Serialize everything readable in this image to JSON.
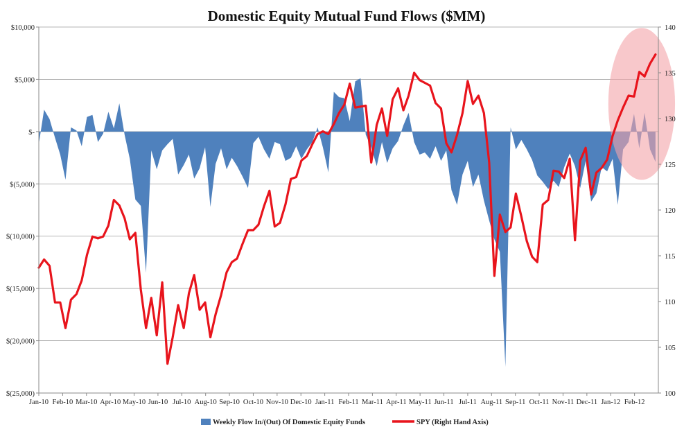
{
  "chart_data": {
    "type": "combo",
    "title": "Domestic Equity Mutual Fund Flows ($MM)",
    "x_tick_labels": [
      "Jan-10",
      "Feb-10",
      "Mar-10",
      "Apr-10",
      "May-10",
      "Jun-10",
      "Jul-10",
      "Aug-10",
      "Sep-10",
      "Oct-10",
      "Nov-10",
      "Dec-10",
      "Jan-11",
      "Feb-11",
      "Mar-11",
      "Apr-11",
      "May-11",
      "Jun-11",
      "Jul-11",
      "Aug-11",
      "Sep-11",
      "Oct-11",
      "Nov-11",
      "Dec-11",
      "Jan-12",
      "Feb-12"
    ],
    "left_axis": {
      "ylim": [
        -25000,
        10000
      ],
      "tick_values": [
        10000,
        5000,
        0,
        -5000,
        -10000,
        -15000,
        -20000,
        -25000
      ],
      "tick_labels": [
        "$10,000",
        "$5,000",
        "$-",
        "$(5,000)",
        "$(10,000)",
        "$(15,000)",
        "$(20,000)",
        "$(25,000)"
      ]
    },
    "right_axis": {
      "ylim": [
        100,
        140
      ],
      "tick_values": [
        140,
        135,
        130,
        125,
        120,
        115,
        110,
        105,
        100
      ],
      "tick_labels": [
        "140",
        "135",
        "130",
        "125",
        "120",
        "115",
        "110",
        "105",
        "100"
      ]
    },
    "legend": {
      "placement": "bottom-center",
      "flow_label": "Weekly Flow In/(Out) Of Domestic Equity Funds",
      "spy_label": "SPY (Right Hand Axis)"
    },
    "colors": {
      "flow": "#4f81bd",
      "spy": "#e8141c",
      "highlight": "#f4a3a8",
      "grid": "#9e9e9e"
    },
    "series": [
      {
        "name": "Weekly Flow In/(Out) Of Domestic Equity Funds",
        "axis": "left",
        "style": "area",
        "x": [
          0,
          0.22,
          0.45,
          0.68,
          0.9,
          1.12,
          1.35,
          1.58,
          1.8,
          2.02,
          2.25,
          2.48,
          2.7,
          2.92,
          3.15,
          3.38,
          3.6,
          3.82,
          4.05,
          4.28,
          4.5,
          4.72,
          4.95,
          5.18,
          5.4,
          5.62,
          5.85,
          6.08,
          6.3,
          6.52,
          6.75,
          6.98,
          7.2,
          7.42,
          7.65,
          7.88,
          8.1,
          8.32,
          8.55,
          8.78,
          9,
          9.22,
          9.45,
          9.68,
          9.9,
          10.12,
          10.35,
          10.58,
          10.8,
          11.02,
          11.25,
          11.48,
          11.7,
          11.92,
          12.15,
          12.38,
          12.6,
          12.82,
          13.05,
          13.28,
          13.5,
          13.72,
          13.95,
          14.18,
          14.4,
          14.62,
          14.85,
          15.08,
          15.3,
          15.52,
          15.75,
          15.98,
          16.2,
          16.42,
          16.65,
          16.88,
          17.1,
          17.32,
          17.55,
          17.78,
          18,
          18.22,
          18.45,
          18.68,
          18.9,
          19.12,
          19.35,
          19.58,
          19.8,
          20.02,
          20.25,
          20.48,
          20.7,
          20.92,
          21.15,
          21.38,
          21.6,
          21.82,
          22.05,
          22.28,
          22.5,
          22.72,
          22.95,
          23.18,
          23.4,
          23.62,
          23.85,
          24.08,
          24.3,
          24.52,
          24.75,
          24.98,
          25.2,
          25.42,
          25.65,
          25.88
        ],
        "values": [
          -1200,
          2100,
          1200,
          -600,
          -2200,
          -4600,
          400,
          100,
          -1400,
          1400,
          1600,
          -1000,
          -200,
          1900,
          300,
          2700,
          -300,
          -2600,
          -6500,
          -7100,
          -13500,
          -1800,
          -3600,
          -1800,
          -1200,
          -700,
          -4100,
          -3200,
          -2200,
          -4500,
          -3500,
          -1500,
          -7200,
          -3100,
          -1600,
          -3600,
          -2500,
          -3300,
          -4300,
          -5400,
          -1100,
          -500,
          -1700,
          -2600,
          -1000,
          -1200,
          -2800,
          -2500,
          -1400,
          -2600,
          -1700,
          -1000,
          400,
          -1500,
          -3900,
          3800,
          3300,
          3200,
          1000,
          4800,
          5100,
          -300,
          -1500,
          -3300,
          -1000,
          -3000,
          -1600,
          -900,
          600,
          1800,
          -1000,
          -2200,
          -2000,
          -2600,
          -1400,
          -2800,
          -1800,
          -5600,
          -7000,
          -4100,
          -2800,
          -5300,
          -4100,
          -6600,
          -8500,
          -10300,
          -11500,
          -22500,
          400,
          -1700,
          -800,
          -1700,
          -2700,
          -4200,
          -4800,
          -5500,
          -4700,
          -5300,
          -3400,
          -2100,
          -3300,
          -5400,
          -2800,
          -6700,
          -5900,
          -3400,
          -3800,
          -2600,
          -7000,
          -1700,
          -1000,
          1700,
          -1600,
          1800,
          -1700,
          -2900
        ]
      },
      {
        "name": "SPY (Right Hand Axis)",
        "axis": "right",
        "style": "line",
        "x": [
          0,
          0.22,
          0.45,
          0.68,
          0.9,
          1.12,
          1.35,
          1.58,
          1.8,
          2.02,
          2.25,
          2.48,
          2.7,
          2.92,
          3.15,
          3.38,
          3.6,
          3.82,
          4.05,
          4.28,
          4.5,
          4.72,
          4.95,
          5.18,
          5.4,
          5.62,
          5.85,
          6.08,
          6.3,
          6.52,
          6.75,
          6.98,
          7.2,
          7.42,
          7.65,
          7.88,
          8.1,
          8.32,
          8.55,
          8.78,
          9,
          9.22,
          9.45,
          9.68,
          9.9,
          10.12,
          10.35,
          10.58,
          10.8,
          11.02,
          11.25,
          11.48,
          11.7,
          11.92,
          12.15,
          12.38,
          12.6,
          12.82,
          13.05,
          13.28,
          13.5,
          13.72,
          13.95,
          14.18,
          14.4,
          14.62,
          14.85,
          15.08,
          15.3,
          15.52,
          15.75,
          15.98,
          16.2,
          16.42,
          16.65,
          16.88,
          17.1,
          17.32,
          17.55,
          17.78,
          18,
          18.22,
          18.45,
          18.68,
          18.9,
          19.12,
          19.35,
          19.58,
          19.8,
          20.02,
          20.25,
          20.48,
          20.7,
          20.92,
          21.15,
          21.38,
          21.6,
          21.82,
          22.05,
          22.28,
          22.5,
          22.72,
          22.95,
          23.18,
          23.4,
          23.62,
          23.85,
          24.08,
          24.3,
          24.52,
          24.75,
          24.98,
          25.2,
          25.42,
          25.65,
          25.88
        ],
        "values": [
          113.7,
          114.6,
          113.9,
          109.9,
          109.9,
          107.1,
          110.2,
          110.8,
          112.3,
          115.1,
          117.1,
          116.9,
          117.1,
          118.3,
          121.1,
          120.5,
          119.1,
          116.8,
          117.5,
          111.3,
          107.1,
          110.4,
          106.3,
          112.1,
          103.2,
          106.1,
          109.6,
          107.1,
          110.9,
          112.9,
          109.1,
          109.9,
          106.1,
          108.6,
          110.7,
          113.2,
          114.3,
          114.7,
          116.3,
          117.8,
          117.8,
          118.4,
          120.4,
          122.1,
          118.2,
          118.6,
          120.6,
          123.4,
          123.6,
          125.4,
          125.9,
          127.2,
          128.3,
          128.6,
          128.3,
          129.4,
          130.6,
          131.5,
          133.8,
          131.2,
          131.3,
          131.4,
          125.2,
          129.3,
          131.1,
          128.1,
          132.1,
          133.3,
          130.9,
          132.5,
          135.0,
          134.2,
          133.9,
          133.6,
          131.7,
          131.1,
          127.3,
          126.3,
          128.2,
          130.6,
          134.1,
          131.6,
          132.5,
          130.6,
          125.2,
          112.8,
          119.5,
          117.6,
          118.1,
          121.8,
          119.3,
          116.6,
          114.9,
          114.3,
          120.6,
          121.1,
          124.3,
          124.2,
          123.5,
          125.6,
          116.7,
          125.4,
          126.8,
          121.7,
          124.1,
          124.6,
          125.5,
          128.1,
          129.8,
          131.2,
          132.5,
          132.4,
          135.1,
          134.6,
          136.0,
          137.0
        ]
      }
    ],
    "annotations": [
      {
        "type": "ellipse-highlight",
        "x_range": [
          23.9,
          26.7
        ],
        "y_range_right": [
          123.3,
          139.9
        ]
      }
    ]
  }
}
